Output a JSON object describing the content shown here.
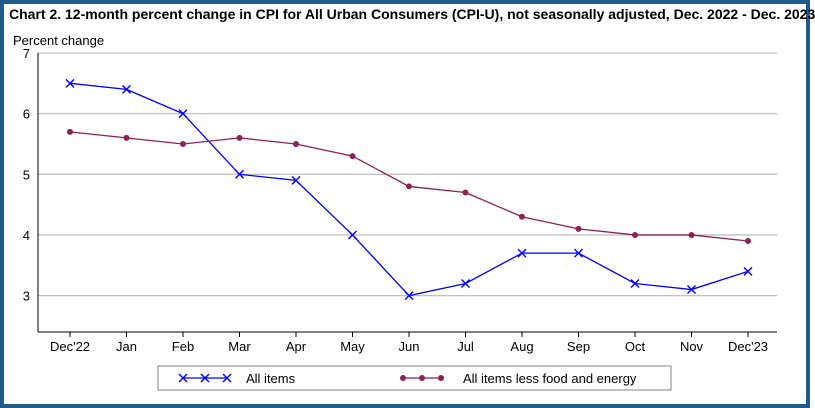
{
  "chart_data": {
    "type": "line",
    "title": "Chart 2. 12-month percent change in CPI for All Urban Consumers (CPI-U), not seasonally adjusted, Dec. 2022 - Dec. 2023",
    "ylabel": "Percent change",
    "xlabel": "",
    "categories": [
      "Dec'22",
      "Jan",
      "Feb",
      "Mar",
      "Apr",
      "May",
      "Jun",
      "Jul",
      "Aug",
      "Sep",
      "Oct",
      "Nov",
      "Dec'23"
    ],
    "ylim": [
      2.4,
      7
    ],
    "yticks": [
      3,
      4,
      5,
      6,
      7
    ],
    "grid": "horizontal",
    "legend_position": "bottom",
    "series": [
      {
        "name": "All items",
        "color": "#0000ff",
        "marker": "x",
        "values": [
          6.5,
          6.4,
          6.0,
          5.0,
          4.9,
          4.0,
          3.0,
          3.2,
          3.7,
          3.7,
          3.2,
          3.1,
          3.4
        ]
      },
      {
        "name": "All items less food and energy",
        "color": "#8b2252",
        "marker": "circle",
        "values": [
          5.7,
          5.6,
          5.5,
          5.6,
          5.5,
          5.3,
          4.8,
          4.7,
          4.3,
          4.1,
          4.0,
          4.0,
          3.9
        ]
      }
    ]
  },
  "colors": {
    "frame_border": "#1f5c8b",
    "gridline": "#c0c0c0",
    "axis": "#000000"
  }
}
